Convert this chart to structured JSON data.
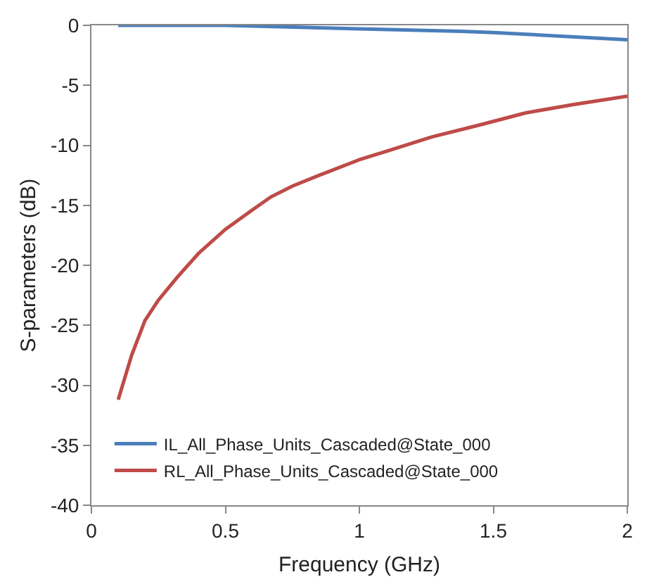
{
  "chart_data": {
    "type": "line",
    "xlabel": "Frequency (GHz)",
    "ylabel": "S-parameters (dB)",
    "series": [
      {
        "name": "IL_All_Phase_Units_Cascaded@State_000",
        "color": "#4a7ebb",
        "x": [
          0.1,
          0.5,
          0.85,
          1,
          1.38,
          1.5,
          2
        ],
        "values": [
          0,
          0,
          -0.2,
          -0.3,
          -0.5,
          -0.6,
          -1.2
        ]
      },
      {
        "name": "RL_All_Phase_Units_Cascaded@State_000",
        "color": "#be4b48",
        "x": [
          0.1,
          0.15,
          0.2,
          0.25,
          0.32,
          0.4,
          0.5,
          0.6,
          0.67,
          0.75,
          0.85,
          1,
          1.1,
          1.27,
          1.45,
          1.62,
          1.8,
          2
        ],
        "values": [
          -31.2,
          -27.5,
          -24.6,
          -22.9,
          -21,
          -19,
          -17,
          -15.4,
          -14.3,
          -13.4,
          -12.5,
          -11.2,
          -10.5,
          -9.3,
          -8.3,
          -7.3,
          -6.6,
          -5.9
        ]
      }
    ],
    "xlim": [
      0,
      2
    ],
    "xticks": [
      0,
      0.5,
      1,
      1.5,
      2
    ],
    "ylim": [
      -40,
      0
    ],
    "yticks": [
      0,
      -5,
      -10,
      -15,
      -20,
      -25,
      -30,
      -35,
      -40
    ],
    "grid": false,
    "legend": "bottom left",
    "marker": "none",
    "line_style": "solid"
  }
}
